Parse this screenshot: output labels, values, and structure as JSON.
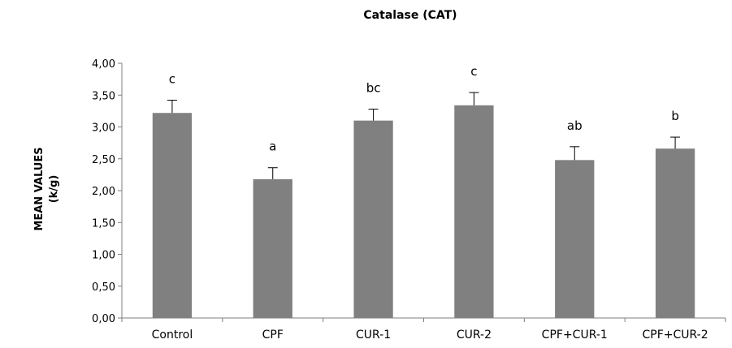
{
  "chart_data": {
    "type": "bar",
    "title": "Catalase (CAT)",
    "ylabel_line1": "MEAN VALUES",
    "ylabel_line2": "(k/g)",
    "xlabel": "",
    "categories": [
      "Control",
      "CPF",
      "CUR-1",
      "CUR-2",
      "CPF+CUR-1",
      "CPF+CUR-2"
    ],
    "values": [
      3.22,
      2.18,
      3.1,
      3.34,
      2.48,
      2.66
    ],
    "error": [
      0.2,
      0.18,
      0.18,
      0.2,
      0.21,
      0.18
    ],
    "significance_labels": [
      "c",
      "a",
      "bc",
      "c",
      "ab",
      "b"
    ],
    "ylim": [
      0,
      4
    ],
    "yticks": [
      "0,00",
      "0,50",
      "1,00",
      "1,50",
      "2,00",
      "2,50",
      "3,00",
      "3,50",
      "4,00"
    ],
    "bar_color": "#808080",
    "grid": false,
    "legend": "none"
  }
}
